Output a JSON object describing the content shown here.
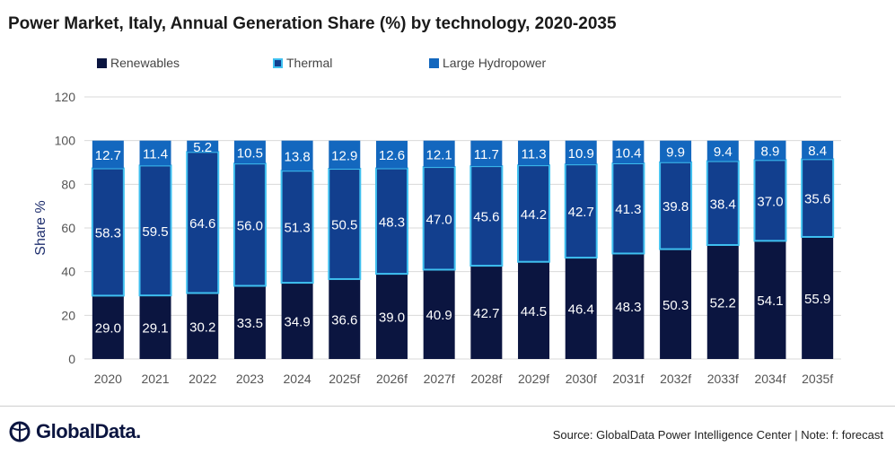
{
  "title": "Power Market, Italy, Annual Generation Share (%) by technology, 2020-2035",
  "source": "Source: GlobalData Power Intelligence Center | Note: f: forecast",
  "logo": {
    "text": "GlobalData."
  },
  "colors": {
    "renewables": "#0b1540",
    "thermal": "#123f8e",
    "thermal_border": "#3fc0f0",
    "hydro": "#1367be",
    "axis_text": "#555555",
    "grid": "#d9d9d9"
  },
  "chart_data": {
    "type": "bar",
    "stacked": true,
    "title": "Power Market, Italy, Annual Generation Share (%) by technology, 2020-2035",
    "xlabel": "",
    "ylabel": "Share %",
    "ylim": [
      0,
      120
    ],
    "yticks": [
      0,
      20,
      40,
      60,
      80,
      100,
      120
    ],
    "grid": true,
    "legend_position": "top-left",
    "categories": [
      "2020",
      "2021",
      "2022",
      "2023",
      "2024",
      "2025f",
      "2026f",
      "2027f",
      "2028f",
      "2029f",
      "2030f",
      "2031f",
      "2032f",
      "2033f",
      "2034f",
      "2035f"
    ],
    "series": [
      {
        "name": "Renewables",
        "values": [
          29.0,
          29.1,
          30.2,
          33.5,
          34.9,
          36.6,
          39.0,
          40.9,
          42.7,
          44.5,
          46.4,
          48.3,
          50.3,
          52.2,
          54.1,
          55.9
        ]
      },
      {
        "name": "Thermal",
        "values": [
          58.3,
          59.5,
          64.6,
          56.0,
          51.3,
          50.5,
          48.3,
          47.0,
          45.6,
          44.2,
          42.7,
          41.3,
          39.8,
          38.4,
          37.0,
          35.6
        ]
      },
      {
        "name": "Large Hydropower",
        "values": [
          12.7,
          11.4,
          5.2,
          10.5,
          13.8,
          12.9,
          12.6,
          12.1,
          11.7,
          11.3,
          10.9,
          10.4,
          9.9,
          9.4,
          8.9,
          8.4
        ]
      }
    ]
  }
}
